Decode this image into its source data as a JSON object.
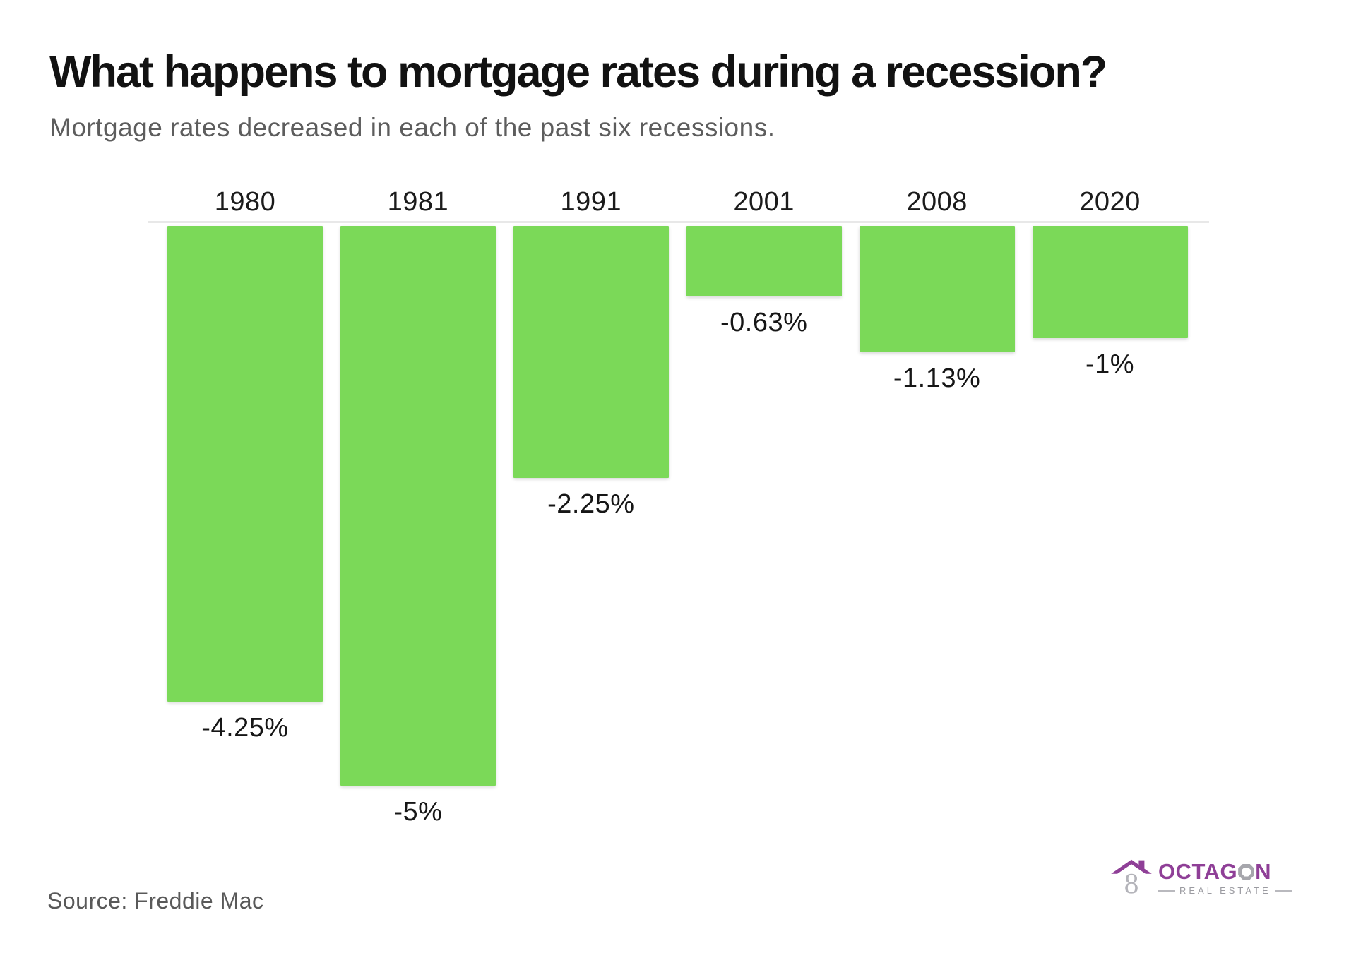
{
  "header": {
    "title": "What happens to mortgage rates during a recession?",
    "subtitle": "Mortgage rates decreased in each of the past six recessions."
  },
  "chart_data": {
    "type": "bar",
    "title": "What happens to mortgage rates during a recession?",
    "subtitle": "Mortgage rates decreased in each of the past six recessions.",
    "categories": [
      "1980",
      "1981",
      "1991",
      "2001",
      "2008",
      "2020"
    ],
    "values": [
      -4.25,
      -5,
      -2.25,
      -0.63,
      -1.13,
      -1
    ],
    "value_labels": [
      "-4.25%",
      "-5%",
      "-2.25%",
      "-0.63%",
      "-1.13%",
      "-1%"
    ],
    "unit": "%",
    "bar_color": "#7BD958",
    "axis_line_color": "#e8e8e8",
    "baseline": 0,
    "ylim": [
      -5.5,
      0
    ],
    "grid": false,
    "legend": "none",
    "category_label_position": "above-baseline",
    "value_label_position": "below-bar-end"
  },
  "footer": {
    "source": "Source: Freddie Mac"
  },
  "logo": {
    "word_start": "OCTAG",
    "word_end": "N",
    "full_name": "OCTAGON",
    "tagline": "REAL ESTATE",
    "house_glyph": "8",
    "purple": "#8F3F97",
    "gray": "#b4b4ba"
  }
}
